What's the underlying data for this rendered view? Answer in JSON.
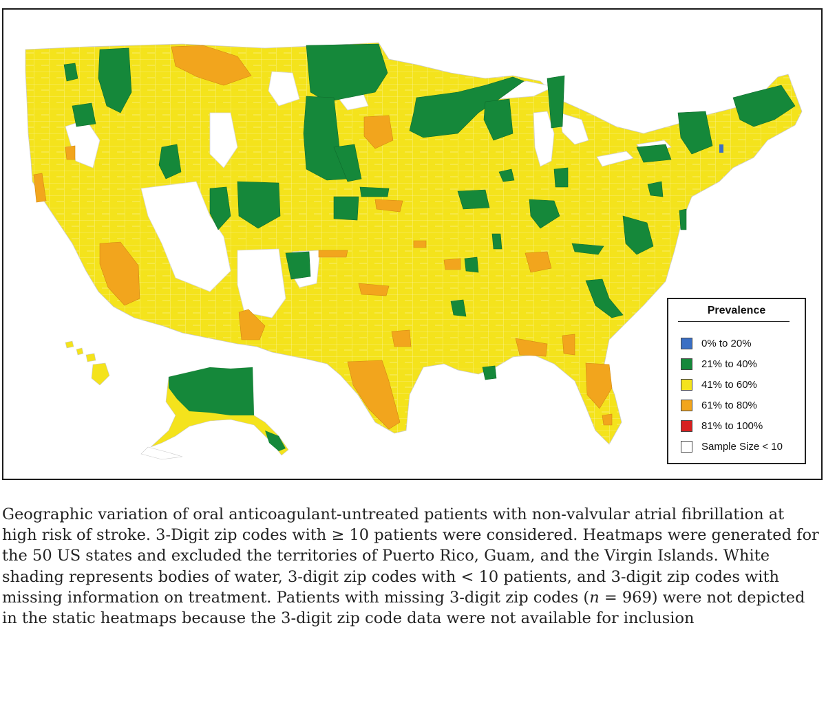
{
  "legend": {
    "title": "Prevalence",
    "items": [
      {
        "label": "0% to 20%",
        "color": "#3a6fc4"
      },
      {
        "label": "21% to 40%",
        "color": "#15883a"
      },
      {
        "label": "41% to 60%",
        "color": "#f4e31c"
      },
      {
        "label": "61% to 80%",
        "color": "#f2a51d"
      },
      {
        "label": "81% to 100%",
        "color": "#d62020"
      },
      {
        "label": "Sample Size < 10",
        "color": "#ffffff"
      }
    ]
  },
  "caption": {
    "part1": "Geographic variation of oral anticoagulant-untreated patients with non-valvular atrial fibrillation at high risk of stroke. 3-Digit zip codes with ≥ 10 patients were considered. Heatmaps were generated for the 50 US states and excluded the territories of Puerto Rico, Guam, and the Virgin Islands. White shading represents bodies of water, 3-digit zip codes with < 10 patients, and 3-digit zip codes with missing information on treatment. Patients with missing 3-digit zip codes (",
    "n_symbol": "n",
    "part2": " = 969) were not depicted in the static heatmaps because the 3-digit zip code data were not available for inclusion"
  },
  "map": {
    "colors": {
      "yellow": "#f4e31c",
      "green": "#15883a",
      "orange": "#f2a51d",
      "blue": "#3a6fc4",
      "white": "#ffffff",
      "border": "#c9c9c9"
    }
  }
}
